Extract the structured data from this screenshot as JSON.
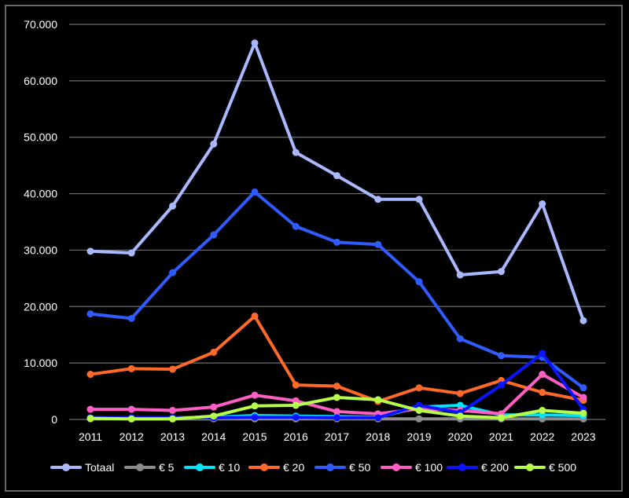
{
  "chart_data": {
    "type": "line",
    "title": "",
    "xlabel": "",
    "ylabel": "",
    "categories": [
      "2011",
      "2012",
      "2013",
      "2014",
      "2015",
      "2016",
      "2017",
      "2018",
      "2019",
      "2020",
      "2021",
      "2022",
      "2023"
    ],
    "ylim": [
      0,
      70000
    ],
    "yticks": [
      0,
      10000,
      20000,
      30000,
      40000,
      50000,
      60000,
      70000
    ],
    "ytick_labels": [
      "0",
      "10.000",
      "20.000",
      "30.000",
      "40.000",
      "50.000",
      "60.000",
      "70.000"
    ],
    "grid": true,
    "legend": "bottom",
    "series": [
      {
        "name": "Totaal",
        "color": "#aab8ff",
        "values": [
          29800,
          29500,
          37800,
          48800,
          66700,
          47300,
          43200,
          39000,
          39000,
          25600,
          26200,
          38200,
          17500
        ]
      },
      {
        "name": "€ 5",
        "color": "#8c8c8c",
        "values": [
          100,
          100,
          100,
          100,
          100,
          100,
          100,
          100,
          100,
          100,
          100,
          100,
          100
        ]
      },
      {
        "name": "€ 10",
        "color": "#00e5ff",
        "values": [
          300,
          300,
          300,
          400,
          700,
          600,
          500,
          400,
          2200,
          2500,
          800,
          800,
          700
        ]
      },
      {
        "name": "€ 20",
        "color": "#ff6a2a",
        "values": [
          8000,
          9000,
          8900,
          11900,
          18300,
          6100,
          5900,
          3200,
          5600,
          4600,
          6900,
          4800,
          3400
        ]
      },
      {
        "name": "€ 50",
        "color": "#2f5bff",
        "values": [
          18700,
          17900,
          26000,
          32700,
          40300,
          34200,
          31400,
          31000,
          24400,
          14300,
          11300,
          11000,
          5600
        ]
      },
      {
        "name": "€ 100",
        "color": "#ff5ec4",
        "values": [
          1800,
          1800,
          1600,
          2200,
          4300,
          3300,
          1400,
          1000,
          1900,
          1600,
          1000,
          8000,
          3900
        ]
      },
      {
        "name": "€ 200",
        "color": "#0a14ff",
        "values": [
          300,
          300,
          300,
          300,
          400,
          400,
          300,
          300,
          2500,
          1200,
          6100,
          11700,
          1800
        ]
      },
      {
        "name": "€ 500",
        "color": "#b5ff4a",
        "values": [
          200,
          100,
          100,
          600,
          2400,
          2500,
          3900,
          3500,
          1600,
          600,
          300,
          1600,
          1100
        ]
      }
    ]
  }
}
